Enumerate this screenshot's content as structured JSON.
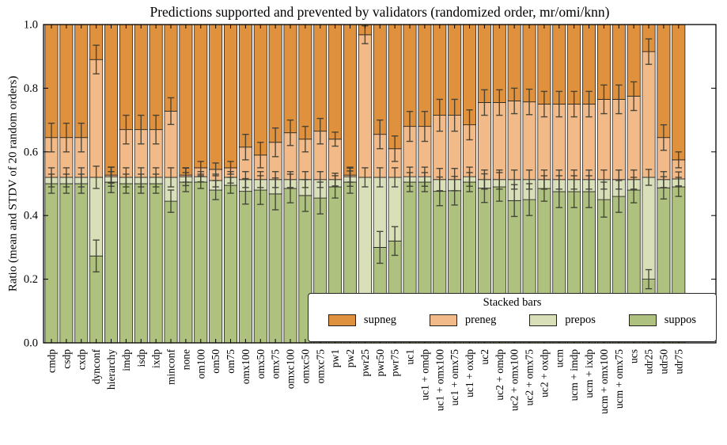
{
  "title": "Predictions supported and prevented by validators (randomized order, mr/omi/knn)",
  "ylabel": "Ratio (mean and STDV of 20 random orders)",
  "legend": {
    "title": "Stacked bars",
    "entries": [
      {
        "label": "supneg",
        "color": "#E0913E"
      },
      {
        "label": "preneg",
        "color": "#F1BA88"
      },
      {
        "label": "prepos",
        "color": "#D8DFB9"
      },
      {
        "label": "suppos",
        "color": "#AEC17E"
      }
    ]
  },
  "axis": {
    "yticks": [
      "0.0",
      "0.2",
      "0.4",
      "0.6",
      "0.8",
      "1.0"
    ],
    "ylim": [
      0,
      1
    ],
    "tick_color": "#000000",
    "error_bar_color": "#3C3C32",
    "segment_edge_color": "#1f1f1f"
  },
  "chart_data": {
    "type": "bar",
    "stacked": true,
    "title": "Predictions supported and prevented by validators (randomized order, mr/omi/knn)",
    "xlabel": "",
    "ylabel": "Ratio (mean and STDV of 20 random orders)",
    "ylim": [
      0,
      1
    ],
    "legend_position": "lower right",
    "series_order_bottom_to_top": [
      "suppos",
      "prepos",
      "preneg",
      "supneg"
    ],
    "series_colors": {
      "suppos": "#AEC17E",
      "prepos": "#D8DFB9",
      "preneg": "#F1BA88",
      "supneg": "#E0913E"
    },
    "note": "values are cumulative tops; supneg fills remainder up to 1.0; err = [stdv at suppos top, stdv at prepos top, stdv at preneg top]",
    "bars": [
      {
        "label": "cmdp",
        "suppos_top": 0.5,
        "prepos_top": 0.52,
        "preneg_top": 0.645,
        "err": [
          0.03,
          0.03,
          0.045
        ]
      },
      {
        "label": "csdp",
        "suppos_top": 0.5,
        "prepos_top": 0.52,
        "preneg_top": 0.645,
        "err": [
          0.03,
          0.03,
          0.045
        ]
      },
      {
        "label": "cxdp",
        "suppos_top": 0.5,
        "prepos_top": 0.52,
        "preneg_top": 0.645,
        "err": [
          0.03,
          0.03,
          0.045
        ]
      },
      {
        "label": "dynconf",
        "suppos_top": 0.273,
        "prepos_top": 0.52,
        "preneg_top": 0.89,
        "err": [
          0.05,
          0.035,
          0.045
        ]
      },
      {
        "label": "hierarchy",
        "suppos_top": 0.505,
        "prepos_top": 0.522,
        "preneg_top": 0.527,
        "err": [
          0.033,
          0.03,
          0.025
        ]
      },
      {
        "label": "imdp",
        "suppos_top": 0.5,
        "prepos_top": 0.52,
        "preneg_top": 0.67,
        "err": [
          0.03,
          0.03,
          0.045
        ]
      },
      {
        "label": "isdp",
        "suppos_top": 0.5,
        "prepos_top": 0.52,
        "preneg_top": 0.67,
        "err": [
          0.03,
          0.03,
          0.045
        ]
      },
      {
        "label": "ixdp",
        "suppos_top": 0.5,
        "prepos_top": 0.52,
        "preneg_top": 0.67,
        "err": [
          0.03,
          0.03,
          0.045
        ]
      },
      {
        "label": "minconf",
        "suppos_top": 0.445,
        "prepos_top": 0.52,
        "preneg_top": 0.728,
        "err": [
          0.035,
          0.03,
          0.042
        ]
      },
      {
        "label": "none",
        "suppos_top": 0.505,
        "prepos_top": 0.522,
        "preneg_top": 0.527,
        "err": [
          0.03,
          0.028,
          0.022
        ]
      },
      {
        "label": "om100",
        "suppos_top": 0.505,
        "prepos_top": 0.522,
        "preneg_top": 0.55,
        "err": [
          0.02,
          0.016,
          0.02
        ]
      },
      {
        "label": "om50",
        "suppos_top": 0.48,
        "prepos_top": 0.51,
        "preneg_top": 0.545,
        "err": [
          0.03,
          0.02,
          0.02
        ]
      },
      {
        "label": "om75",
        "suppos_top": 0.495,
        "prepos_top": 0.52,
        "preneg_top": 0.55,
        "err": [
          0.025,
          0.018,
          0.02
        ]
      },
      {
        "label": "omx100",
        "suppos_top": 0.476,
        "prepos_top": 0.513,
        "preneg_top": 0.615,
        "err": [
          0.04,
          0.025,
          0.04
        ]
      },
      {
        "label": "omx50",
        "suppos_top": 0.48,
        "prepos_top": 0.513,
        "preneg_top": 0.59,
        "err": [
          0.045,
          0.025,
          0.04
        ]
      },
      {
        "label": "omx75",
        "suppos_top": 0.468,
        "prepos_top": 0.513,
        "preneg_top": 0.63,
        "err": [
          0.05,
          0.025,
          0.045
        ]
      },
      {
        "label": "omxc100",
        "suppos_top": 0.485,
        "prepos_top": 0.513,
        "preneg_top": 0.66,
        "err": [
          0.045,
          0.025,
          0.04
        ]
      },
      {
        "label": "omxc50",
        "suppos_top": 0.463,
        "prepos_top": 0.513,
        "preneg_top": 0.64,
        "err": [
          0.05,
          0.025,
          0.04
        ]
      },
      {
        "label": "omxc75",
        "suppos_top": 0.455,
        "prepos_top": 0.513,
        "preneg_top": 0.665,
        "err": [
          0.05,
          0.025,
          0.04
        ]
      },
      {
        "label": "pw1",
        "suppos_top": 0.49,
        "prepos_top": 0.513,
        "preneg_top": 0.64,
        "err": [
          0.035,
          0.02,
          0.022
        ]
      },
      {
        "label": "pw2",
        "suppos_top": 0.505,
        "prepos_top": 0.522,
        "preneg_top": 0.527,
        "err": [
          0.035,
          0.03,
          0.022
        ]
      },
      {
        "label": "pwr25",
        "suppos_top": 0.1,
        "prepos_top": 0.52,
        "preneg_top": 0.968,
        "err": [
          0.03,
          0.03,
          0.028
        ]
      },
      {
        "label": "pwr50",
        "suppos_top": 0.3,
        "prepos_top": 0.52,
        "preneg_top": 0.655,
        "err": [
          0.05,
          0.03,
          0.045
        ]
      },
      {
        "label": "pwr75",
        "suppos_top": 0.32,
        "prepos_top": 0.52,
        "preneg_top": 0.61,
        "err": [
          0.045,
          0.03,
          0.04
        ]
      },
      {
        "label": "uc1",
        "suppos_top": 0.505,
        "prepos_top": 0.522,
        "preneg_top": 0.68,
        "err": [
          0.03,
          0.03,
          0.047
        ]
      },
      {
        "label": "uc1 + omdp",
        "suppos_top": 0.505,
        "prepos_top": 0.522,
        "preneg_top": 0.68,
        "err": [
          0.03,
          0.03,
          0.047
        ]
      },
      {
        "label": "uc1 + omx100",
        "suppos_top": 0.476,
        "prepos_top": 0.513,
        "preneg_top": 0.715,
        "err": [
          0.045,
          0.035,
          0.05
        ]
      },
      {
        "label": "uc1 + omx75",
        "suppos_top": 0.478,
        "prepos_top": 0.513,
        "preneg_top": 0.715,
        "err": [
          0.045,
          0.035,
          0.05
        ]
      },
      {
        "label": "uc1 + oxdp",
        "suppos_top": 0.505,
        "prepos_top": 0.522,
        "preneg_top": 0.685,
        "err": [
          0.03,
          0.03,
          0.047
        ]
      },
      {
        "label": "uc2",
        "suppos_top": 0.486,
        "prepos_top": 0.513,
        "preneg_top": 0.755,
        "err": [
          0.045,
          0.03,
          0.04
        ]
      },
      {
        "label": "uc2 + omdp",
        "suppos_top": 0.49,
        "prepos_top": 0.513,
        "preneg_top": 0.755,
        "err": [
          0.045,
          0.03,
          0.04
        ]
      },
      {
        "label": "uc2 + omx100",
        "suppos_top": 0.447,
        "prepos_top": 0.513,
        "preneg_top": 0.76,
        "err": [
          0.05,
          0.03,
          0.04
        ]
      },
      {
        "label": "uc2 + omx75",
        "suppos_top": 0.45,
        "prepos_top": 0.513,
        "preneg_top": 0.757,
        "err": [
          0.05,
          0.03,
          0.04
        ]
      },
      {
        "label": "uc2 + oxdp",
        "suppos_top": 0.485,
        "prepos_top": 0.513,
        "preneg_top": 0.75,
        "err": [
          0.04,
          0.03,
          0.04
        ]
      },
      {
        "label": "ucm",
        "suppos_top": 0.475,
        "prepos_top": 0.513,
        "preneg_top": 0.75,
        "err": [
          0.05,
          0.03,
          0.04
        ]
      },
      {
        "label": "ucm + imdp",
        "suppos_top": 0.475,
        "prepos_top": 0.513,
        "preneg_top": 0.75,
        "err": [
          0.05,
          0.03,
          0.04
        ]
      },
      {
        "label": "ucm + ixdp",
        "suppos_top": 0.475,
        "prepos_top": 0.513,
        "preneg_top": 0.75,
        "err": [
          0.05,
          0.03,
          0.04
        ]
      },
      {
        "label": "ucm + omx100",
        "suppos_top": 0.45,
        "prepos_top": 0.513,
        "preneg_top": 0.765,
        "err": [
          0.055,
          0.03,
          0.045
        ]
      },
      {
        "label": "ucm + omx75",
        "suppos_top": 0.46,
        "prepos_top": 0.513,
        "preneg_top": 0.765,
        "err": [
          0.05,
          0.03,
          0.045
        ]
      },
      {
        "label": "ucs",
        "suppos_top": 0.48,
        "prepos_top": 0.513,
        "preneg_top": 0.775,
        "err": [
          0.04,
          0.03,
          0.045
        ]
      },
      {
        "label": "udr25",
        "suppos_top": 0.2,
        "prepos_top": 0.52,
        "preneg_top": 0.915,
        "err": [
          0.03,
          0.025,
          0.04
        ]
      },
      {
        "label": "udr50",
        "suppos_top": 0.487,
        "prepos_top": 0.513,
        "preneg_top": 0.645,
        "err": [
          0.035,
          0.025,
          0.04
        ]
      },
      {
        "label": "udr75",
        "suppos_top": 0.49,
        "prepos_top": 0.515,
        "preneg_top": 0.575,
        "err": [
          0.03,
          0.022,
          0.025
        ]
      }
    ]
  }
}
